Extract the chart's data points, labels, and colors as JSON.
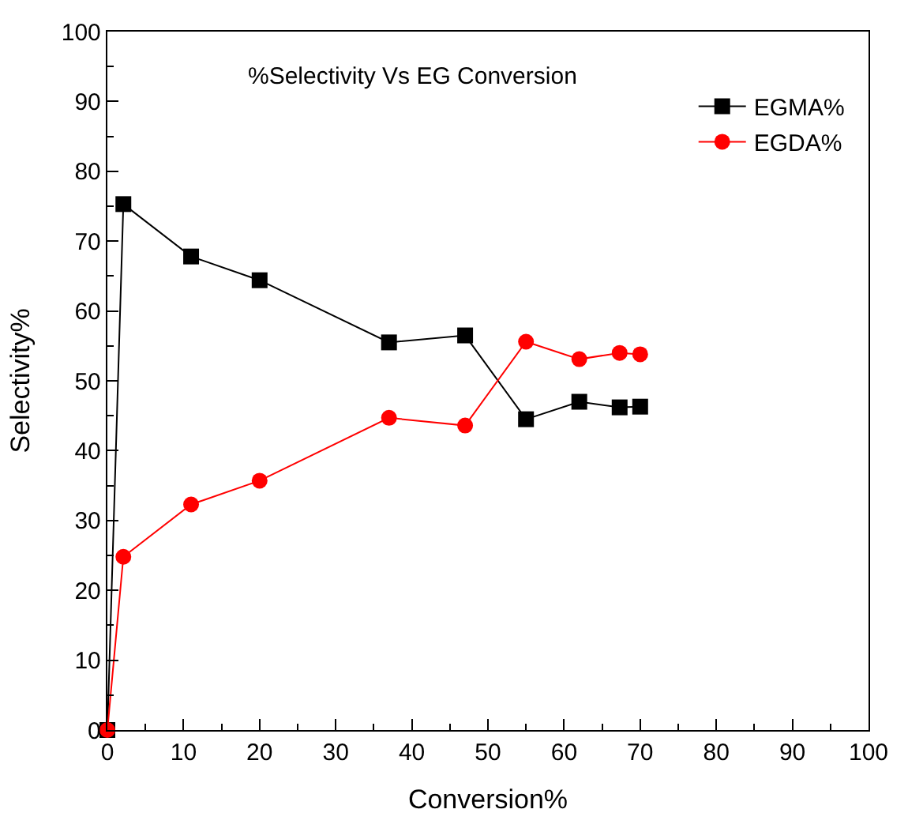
{
  "chart_data": {
    "type": "line",
    "title": "%Selectivity Vs EG Conversion",
    "xlabel": "Conversion%",
    "ylabel": "Selectivity%",
    "x": [
      0,
      2.1,
      11,
      20,
      37,
      47,
      55,
      62,
      67.3,
      70
    ],
    "series": [
      {
        "name": "EGMA%",
        "color": "#000000",
        "marker": "square",
        "values": [
          0,
          75.3,
          67.8,
          64.4,
          55.5,
          56.5,
          44.5,
          47,
          46.2,
          46.3
        ]
      },
      {
        "name": "EGDA%",
        "color": "#ff0000",
        "marker": "circle",
        "values": [
          0,
          24.8,
          32.3,
          35.7,
          44.7,
          43.6,
          55.6,
          53.1,
          54,
          53.8
        ]
      }
    ],
    "xlim": [
      0,
      100
    ],
    "xticks": [
      0,
      10,
      20,
      30,
      40,
      50,
      60,
      70,
      80,
      90,
      100
    ],
    "ylim": [
      0,
      100
    ],
    "yticks": [
      0,
      10,
      20,
      30,
      40,
      50,
      60,
      70,
      80,
      90,
      100
    ],
    "legend": "top right",
    "line_style": "solid"
  }
}
